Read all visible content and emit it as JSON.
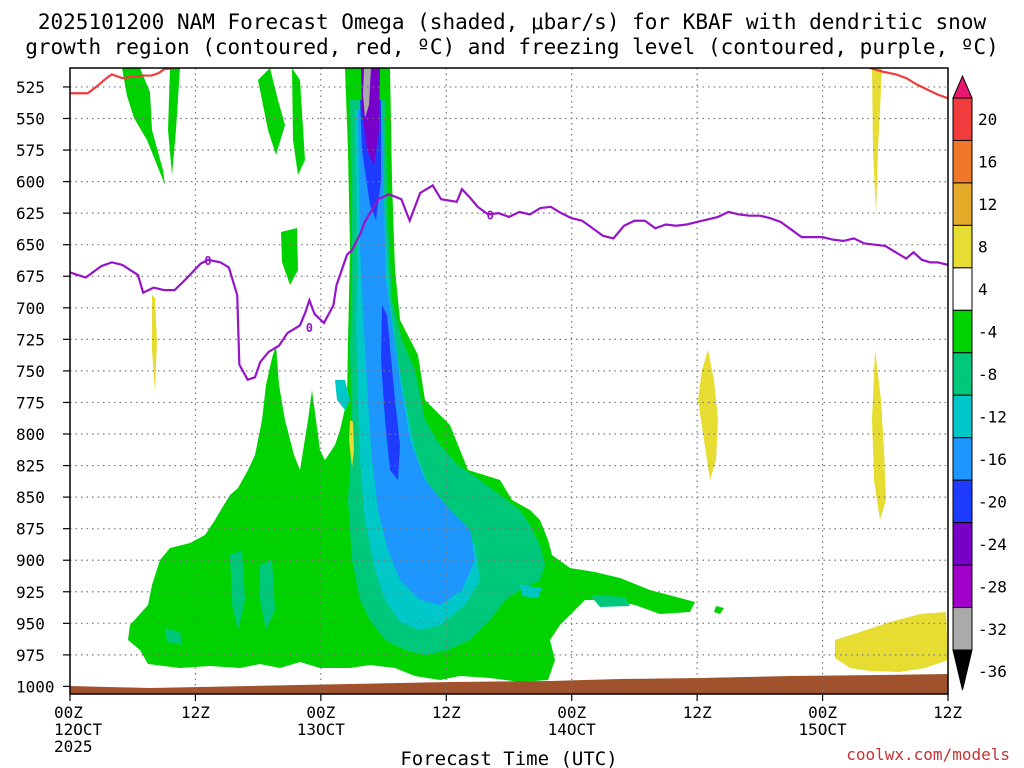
{
  "chart_data": {
    "type": "heatmap",
    "title_line1": "2025101200 NAM Forecast Omega (shaded, μbar/s) for KBAF with dendritic snow",
    "title_line2": "growth region (contoured, red, ºC) and freezing level (contoured, purple, ºC)",
    "xlabel": "Forecast Time (UTC)",
    "credit": "coolwx.com/models",
    "y_axis": {
      "ticks": [
        525,
        550,
        575,
        600,
        625,
        650,
        675,
        700,
        725,
        750,
        775,
        800,
        825,
        850,
        875,
        900,
        925,
        950,
        975,
        1000
      ],
      "range": [
        510,
        1006
      ]
    },
    "x_axis": {
      "range_hours": [
        0,
        84
      ],
      "ticks": [
        {
          "h": 0,
          "line1": "00Z",
          "line2": "12OCT",
          "line3": "2025"
        },
        {
          "h": 12,
          "line1": "12Z",
          "line2": "",
          "line3": ""
        },
        {
          "h": 24,
          "line1": "00Z",
          "line2": "13OCT",
          "line3": ""
        },
        {
          "h": 36,
          "line1": "12Z",
          "line2": "",
          "line3": ""
        },
        {
          "h": 48,
          "line1": "00Z",
          "line2": "14OCT",
          "line3": ""
        },
        {
          "h": 60,
          "line1": "12Z",
          "line2": "",
          "line3": ""
        },
        {
          "h": 72,
          "line1": "00Z",
          "line2": "15OCT",
          "line3": ""
        },
        {
          "h": 84,
          "line1": "12Z",
          "line2": "",
          "line3": ""
        }
      ]
    },
    "colorbar": {
      "labels": [
        "20",
        "16",
        "12",
        "8",
        "4",
        "-4",
        "-8",
        "-12",
        "-16",
        "-20",
        "-24",
        "-28",
        "-32",
        "-36"
      ],
      "bins": [
        {
          "color": "#e8186e"
        },
        {
          "color": "#f03c3c"
        },
        {
          "color": "#f0782a"
        },
        {
          "color": "#e6aa2a"
        },
        {
          "color": "#e6dc32"
        },
        {
          "color": "#ffffff"
        },
        {
          "color": "#00d200"
        },
        {
          "color": "#00c87a"
        },
        {
          "color": "#00c8c8"
        },
        {
          "color": "#1e96ff"
        },
        {
          "color": "#1e3cff"
        },
        {
          "color": "#7800c8"
        },
        {
          "color": "#a000c8"
        },
        {
          "color": "#aaaaaa"
        },
        {
          "color": "#000000"
        }
      ]
    },
    "freezing_level": {
      "label": "0",
      "color": "#9614c8",
      "points": [
        [
          0,
          672
        ],
        [
          1.5,
          676
        ],
        [
          3,
          667
        ],
        [
          4,
          664
        ],
        [
          5,
          666
        ],
        [
          6.5,
          674
        ],
        [
          7,
          688
        ],
        [
          8,
          684
        ],
        [
          9,
          686
        ],
        [
          10,
          686
        ],
        [
          11,
          678
        ],
        [
          12.5,
          665
        ],
        [
          13.2,
          662
        ],
        [
          14.4,
          664
        ],
        [
          15.2,
          668
        ],
        [
          16,
          690
        ],
        [
          16.2,
          745
        ],
        [
          17,
          757
        ],
        [
          17.7,
          755
        ],
        [
          18.2,
          743
        ],
        [
          19,
          735
        ],
        [
          20,
          730
        ],
        [
          20.8,
          720
        ],
        [
          22,
          714
        ],
        [
          22.5,
          704
        ],
        [
          22.9,
          694
        ],
        [
          23.4,
          705
        ],
        [
          24.3,
          712
        ],
        [
          25.2,
          698
        ],
        [
          25.5,
          682
        ],
        [
          26.5,
          658
        ],
        [
          27,
          654
        ],
        [
          27.8,
          641
        ],
        [
          28.2,
          632
        ],
        [
          29.5,
          614
        ],
        [
          30.5,
          610
        ],
        [
          31.7,
          614
        ],
        [
          32.5,
          631
        ],
        [
          33.5,
          609
        ],
        [
          34.7,
          603
        ],
        [
          35.5,
          614
        ],
        [
          37,
          616
        ],
        [
          37.5,
          606
        ],
        [
          38.3,
          613
        ],
        [
          39,
          620
        ],
        [
          40,
          626
        ],
        [
          41,
          625
        ],
        [
          42,
          628
        ],
        [
          43,
          624
        ],
        [
          44,
          626
        ],
        [
          45,
          621
        ],
        [
          46,
          620
        ],
        [
          47,
          625
        ],
        [
          48,
          629
        ],
        [
          49,
          631
        ],
        [
          50,
          637
        ],
        [
          51,
          643
        ],
        [
          52,
          645
        ],
        [
          53,
          635
        ],
        [
          54,
          631
        ],
        [
          55,
          631
        ],
        [
          56,
          637
        ],
        [
          57,
          634
        ],
        [
          58,
          635
        ],
        [
          59,
          634
        ],
        [
          60,
          632
        ],
        [
          61,
          630
        ],
        [
          62,
          628
        ],
        [
          63,
          624
        ],
        [
          64,
          626
        ],
        [
          65,
          627
        ],
        [
          66,
          627
        ],
        [
          67,
          629
        ],
        [
          68,
          632
        ],
        [
          69,
          638
        ],
        [
          70,
          644
        ],
        [
          71,
          644
        ],
        [
          72,
          644
        ],
        [
          73,
          646
        ],
        [
          74,
          647
        ],
        [
          75,
          645
        ],
        [
          76,
          649
        ],
        [
          77,
          650
        ],
        [
          78,
          651
        ],
        [
          79,
          656
        ],
        [
          80,
          661
        ],
        [
          80.7,
          656
        ],
        [
          81.5,
          662
        ],
        [
          82.3,
          664
        ],
        [
          83,
          664
        ],
        [
          84,
          666
        ]
      ]
    },
    "dgz_top": {
      "color": "#f03c3c",
      "segments": [
        [
          [
            0,
            530
          ],
          [
            1.7,
            530
          ],
          [
            2.5,
            525
          ],
          [
            3.5,
            518
          ],
          [
            4,
            515
          ],
          [
            5,
            518
          ],
          [
            7,
            516
          ],
          [
            7.8,
            516
          ],
          [
            8.5,
            514
          ],
          [
            9,
            511
          ],
          [
            10,
            510
          ]
        ],
        [
          [
            76.5,
            510
          ],
          [
            77.8,
            513
          ],
          [
            79,
            515
          ],
          [
            80,
            518
          ],
          [
            81,
            523
          ],
          [
            82,
            527
          ],
          [
            83,
            531
          ],
          [
            84,
            534
          ]
        ]
      ]
    }
  }
}
